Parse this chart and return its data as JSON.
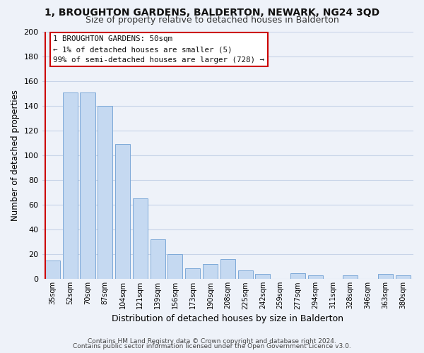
{
  "title": "1, BROUGHTON GARDENS, BALDERTON, NEWARK, NG24 3QD",
  "subtitle": "Size of property relative to detached houses in Balderton",
  "xlabel": "Distribution of detached houses by size in Balderton",
  "ylabel": "Number of detached properties",
  "bar_labels": [
    "35sqm",
    "52sqm",
    "70sqm",
    "87sqm",
    "104sqm",
    "121sqm",
    "139sqm",
    "156sqm",
    "173sqm",
    "190sqm",
    "208sqm",
    "225sqm",
    "242sqm",
    "259sqm",
    "277sqm",
    "294sqm",
    "311sqm",
    "328sqm",
    "346sqm",
    "363sqm",
    "380sqm"
  ],
  "bar_values": [
    15,
    151,
    151,
    140,
    109,
    65,
    32,
    20,
    9,
    12,
    16,
    7,
    4,
    0,
    5,
    3,
    0,
    3,
    0,
    4,
    3
  ],
  "bar_color": "#c5d9f1",
  "bar_edge_color": "#7da9d8",
  "highlight_color": "#cc0000",
  "ylim": [
    0,
    200
  ],
  "yticks": [
    0,
    20,
    40,
    60,
    80,
    100,
    120,
    140,
    160,
    180,
    200
  ],
  "annotation_line1": "1 BROUGHTON GARDENS: 50sqm",
  "annotation_line2": "← 1% of detached houses are smaller (5)",
  "annotation_line3": "99% of semi-detached houses are larger (728) →",
  "footer_line1": "Contains HM Land Registry data © Crown copyright and database right 2024.",
  "footer_line2": "Contains public sector information licensed under the Open Government Licence v3.0.",
  "grid_color": "#c8d4e8",
  "background_color": "#eef2f9",
  "title_fontsize": 10,
  "subtitle_fontsize": 9
}
